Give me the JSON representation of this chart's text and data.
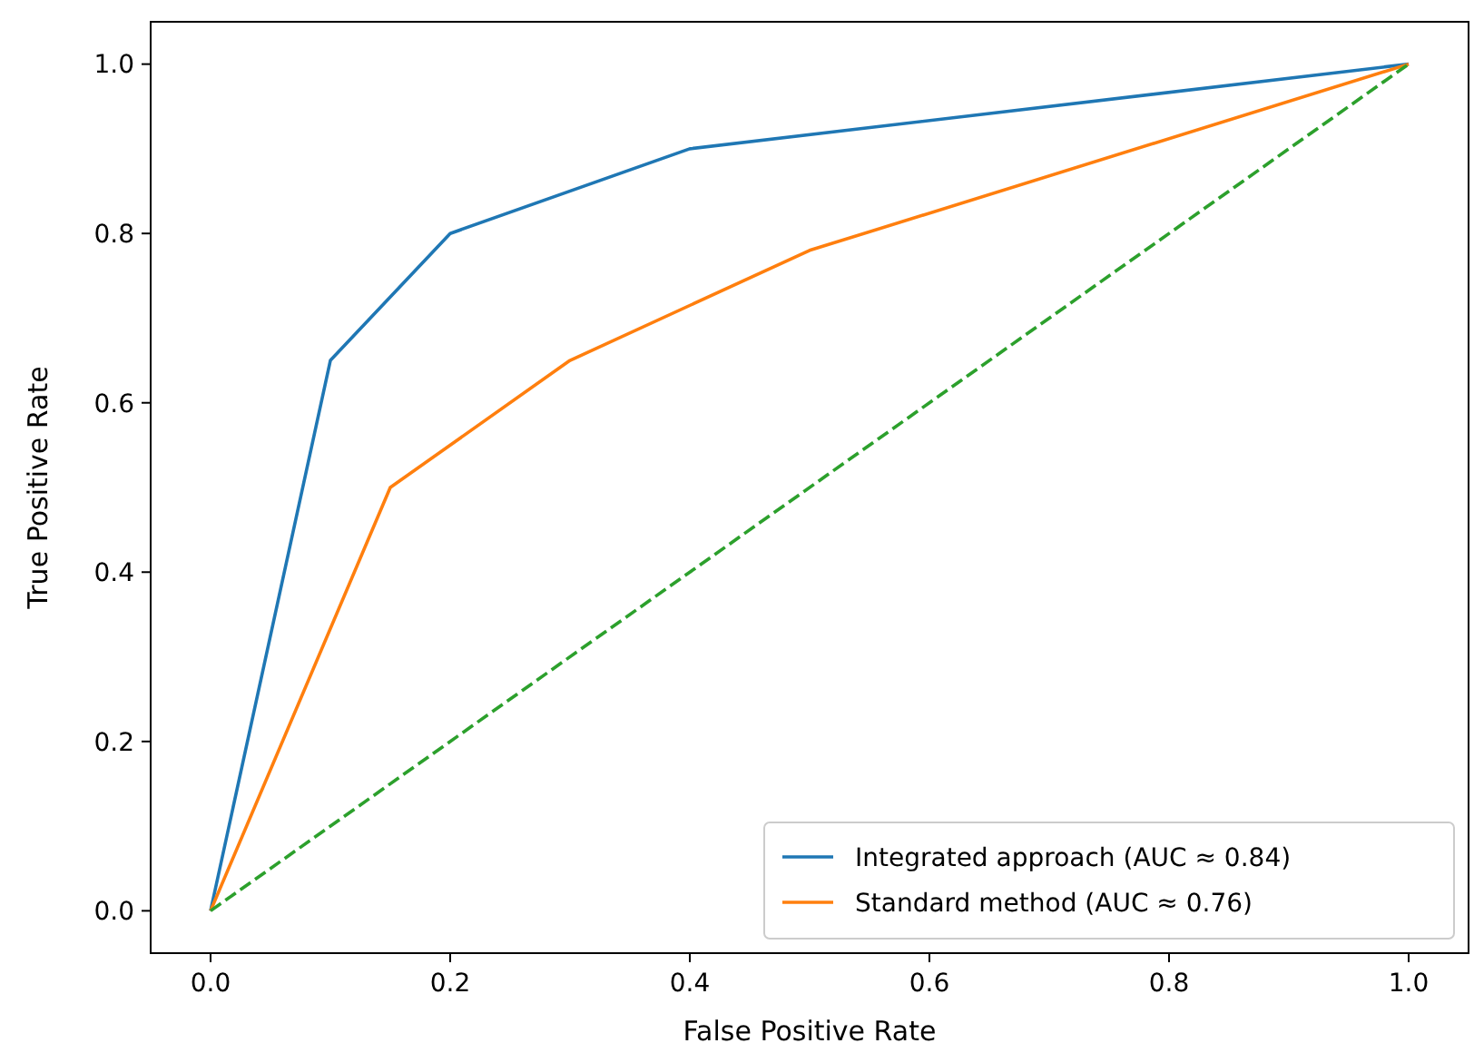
{
  "chart_data": {
    "type": "line",
    "xlabel": "False Positive Rate",
    "ylabel": "True Positive Rate",
    "legend": "bottom right",
    "xlim": [
      -0.05,
      1.05
    ],
    "ylim": [
      -0.05,
      1.05
    ],
    "xticks": [
      {
        "value": 0,
        "label": "0.0"
      },
      {
        "value": 0.2,
        "label": "0.2"
      },
      {
        "value": 0.4,
        "label": "0.4"
      },
      {
        "value": 0.6,
        "label": "0.6"
      },
      {
        "value": 0.8,
        "label": "0.8"
      },
      {
        "value": 1,
        "label": "1.0"
      }
    ],
    "yticks": [
      {
        "value": 0,
        "label": "0.0"
      },
      {
        "value": 0.2,
        "label": "0.2"
      },
      {
        "value": 0.4,
        "label": "0.4"
      },
      {
        "value": 0.6,
        "label": "0.6"
      },
      {
        "value": 0.8,
        "label": "0.8"
      },
      {
        "value": 1,
        "label": "1.0"
      }
    ],
    "series": [
      {
        "name": "Integrated approach (AUC ≈ 0.84)",
        "color": "#1f77b4",
        "line_style": "solid",
        "x": [
          0,
          0.1,
          0.2,
          0.4,
          1
        ],
        "values": [
          0,
          0.65,
          0.8,
          0.9,
          1
        ]
      },
      {
        "name": "Standard method (AUC ≈ 0.76)",
        "color": "#ff7f0e",
        "line_style": "solid",
        "x": [
          0,
          0.15,
          0.3,
          0.5,
          1
        ],
        "values": [
          0,
          0.5,
          0.65,
          0.78,
          1
        ]
      },
      {
        "color": "#2ca02c",
        "line_style": "dashed",
        "x": [
          0,
          1
        ],
        "values": [
          0,
          1
        ]
      }
    ]
  }
}
